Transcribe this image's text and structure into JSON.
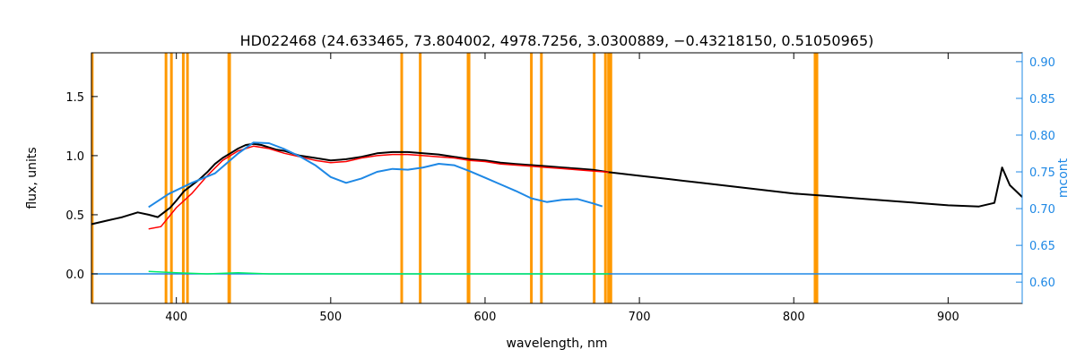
{
  "chart_data": {
    "type": "line",
    "title": "HD022468    (24.633465, 73.804002, 4978.7256, 3.0300889, −0.43218150, 0.51050965)",
    "xlabel": "wavelength, nm",
    "ylabel": "flux, units",
    "y2label": "mcont",
    "xlim": [
      345,
      948
    ],
    "ylim": [
      -0.25,
      1.87
    ],
    "y2lim": [
      0.571,
      0.912
    ],
    "xticks": [
      400,
      500,
      600,
      700,
      800,
      900
    ],
    "yticks": [
      0.0,
      0.5,
      1.0,
      1.5
    ],
    "y2ticks": [
      0.6,
      0.65,
      0.7,
      0.75,
      0.8,
      0.85,
      0.9
    ],
    "colors": {
      "observed": "#000000",
      "model": "#ff0000",
      "residual": "#00ee66",
      "continuum": "#1e88e5",
      "masked": "#ff9900",
      "axes": "#000000",
      "right_axis": "#1e88e5"
    },
    "masked_lines_nm": [
      345.5,
      393.3,
      396.8,
      404.5,
      407.2,
      434.0,
      434.5,
      546.0,
      558.0,
      589.0,
      589.6,
      630.0,
      636.5,
      670.7,
      678.0,
      680.0,
      681.5,
      813.8,
      815.0
    ],
    "series": [
      {
        "name": "observed",
        "x": [
          345,
          355,
          365,
          375,
          382,
          388,
          392,
          396,
          400,
          405,
          410,
          415,
          420,
          425,
          430,
          435,
          440,
          445,
          450,
          455,
          460,
          465,
          470,
          475,
          480,
          490,
          500,
          510,
          520,
          530,
          540,
          550,
          560,
          570,
          580,
          590,
          600,
          610,
          620,
          630,
          640,
          650,
          660,
          670,
          680,
          700,
          720,
          740,
          760,
          780,
          800,
          820,
          840,
          860,
          880,
          900,
          920,
          930,
          935,
          940,
          948
        ],
        "y": [
          0.42,
          0.45,
          0.48,
          0.52,
          0.5,
          0.48,
          0.52,
          0.56,
          0.62,
          0.7,
          0.75,
          0.8,
          0.86,
          0.93,
          0.98,
          1.02,
          1.06,
          1.09,
          1.1,
          1.09,
          1.07,
          1.05,
          1.04,
          1.02,
          1.0,
          0.98,
          0.96,
          0.97,
          0.99,
          1.02,
          1.03,
          1.03,
          1.02,
          1.01,
          0.99,
          0.97,
          0.96,
          0.94,
          0.93,
          0.92,
          0.91,
          0.9,
          0.89,
          0.88,
          0.86,
          0.83,
          0.8,
          0.77,
          0.74,
          0.71,
          0.68,
          0.66,
          0.64,
          0.62,
          0.6,
          0.58,
          0.57,
          0.6,
          0.9,
          0.75,
          0.65
        ]
      },
      {
        "name": "model",
        "x": [
          382,
          390,
          400,
          410,
          420,
          430,
          440,
          450,
          460,
          470,
          480,
          490,
          500,
          510,
          520,
          530,
          540,
          550,
          560,
          570,
          580,
          590,
          600,
          610,
          620,
          630,
          640,
          650,
          660,
          670,
          680
        ],
        "y": [
          0.38,
          0.4,
          0.56,
          0.68,
          0.83,
          0.96,
          1.04,
          1.08,
          1.06,
          1.02,
          0.99,
          0.96,
          0.94,
          0.95,
          0.98,
          1.0,
          1.01,
          1.01,
          1.0,
          0.99,
          0.98,
          0.96,
          0.95,
          0.93,
          0.92,
          0.91,
          0.9,
          0.89,
          0.88,
          0.87,
          0.86
        ]
      },
      {
        "name": "residual",
        "x": [
          382,
          400,
          420,
          440,
          460,
          480,
          500,
          520,
          540,
          560,
          580,
          600,
          620,
          640,
          655,
          660,
          670,
          680
        ],
        "y": [
          0.02,
          0.01,
          0.0,
          0.01,
          0.0,
          0.0,
          0.0,
          0.0,
          0.0,
          0.0,
          0.0,
          0.0,
          0.0,
          0.0,
          0.0,
          0.0,
          0.0,
          0.0
        ]
      },
      {
        "name": "continuum",
        "axis": "right",
        "x": [
          382,
          395,
          410,
          425,
          440,
          450,
          460,
          470,
          480,
          490,
          500,
          510,
          520,
          530,
          540,
          550,
          560,
          570,
          580,
          590,
          600,
          610,
          620,
          630,
          640,
          650,
          660,
          670,
          676
        ],
        "y": [
          0.702,
          0.72,
          0.735,
          0.748,
          0.775,
          0.79,
          0.789,
          0.781,
          0.771,
          0.759,
          0.743,
          0.735,
          0.741,
          0.75,
          0.754,
          0.753,
          0.756,
          0.761,
          0.759,
          0.751,
          0.742,
          0.733,
          0.724,
          0.714,
          0.709,
          0.712,
          0.713,
          0.707,
          0.703
        ]
      },
      {
        "name": "baseline",
        "axis": "left",
        "x": [
          345,
          948
        ],
        "y": [
          0.0,
          0.0
        ]
      }
    ]
  }
}
